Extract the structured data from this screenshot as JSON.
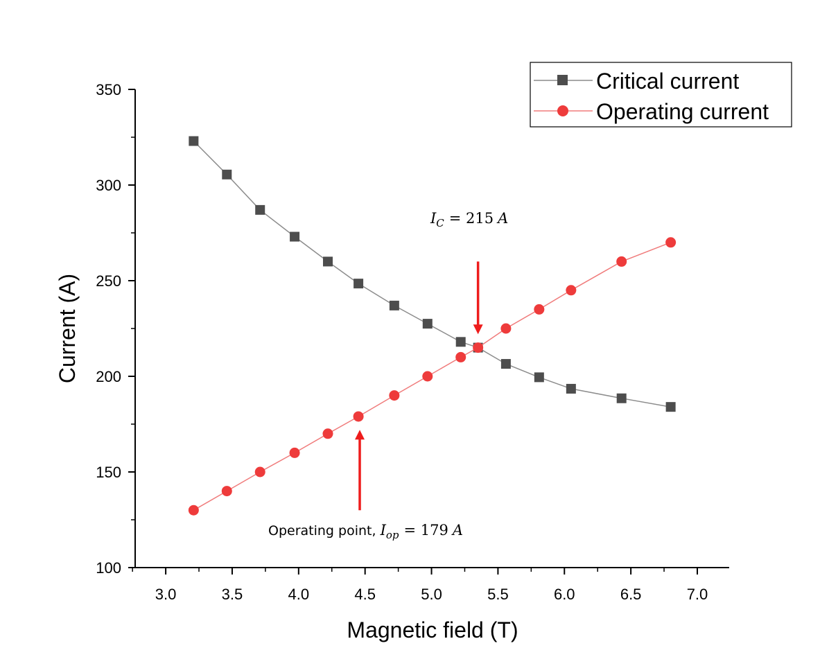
{
  "chart_data": {
    "type": "line",
    "xlabel": "Magnetic field (T)",
    "ylabel": "Current (A)",
    "xlim": [
      2.77,
      7.24
    ],
    "ylim": [
      100,
      350
    ],
    "xticks": [
      "3.0",
      "3.5",
      "4.0",
      "4.5",
      "5.0",
      "5.5",
      "6.0",
      "6.5",
      "7.0"
    ],
    "yticks": [
      "100",
      "150",
      "200",
      "250",
      "300",
      "350"
    ],
    "legend_position": "top-right",
    "series": [
      {
        "name": "Critical current",
        "color": "#4d4d4d",
        "line_color": "#8c8c8c",
        "marker": "square",
        "x": [
          3.21,
          3.46,
          3.71,
          3.97,
          4.22,
          4.45,
          4.72,
          4.97,
          5.22,
          5.35,
          5.56,
          5.81,
          6.05,
          6.43,
          6.8
        ],
        "values": [
          323,
          305.5,
          287,
          273,
          260,
          248.5,
          237,
          227.5,
          218,
          215,
          206.5,
          199.5,
          193.5,
          188.5,
          184
        ]
      },
      {
        "name": "Operating current",
        "color": "#ee3b3b",
        "line_color": "#f07b7b",
        "marker": "circle",
        "x": [
          3.21,
          3.46,
          3.71,
          3.97,
          4.22,
          4.45,
          4.72,
          4.97,
          5.22,
          5.35,
          5.56,
          5.81,
          6.05,
          6.43,
          6.8
        ],
        "values": [
          130,
          140,
          150,
          160,
          170,
          179,
          190,
          200,
          210,
          215,
          225,
          235,
          245,
          260,
          270
        ]
      }
    ],
    "annotations": [
      {
        "id": "ic",
        "symbol": "I",
        "subscript": "C",
        "equation": "= 215",
        "unit": "A",
        "arrow_x": 5.35,
        "arrow_from": 260,
        "arrow_to": 222
      },
      {
        "id": "op",
        "prefix": "Operating point, ",
        "symbol": "I",
        "subscript": "op",
        "equation": "= 179",
        "unit": "A",
        "arrow_x": 4.46,
        "arrow_from": 130,
        "arrow_to": 172
      }
    ],
    "arrow_color": "#ee1c1c"
  }
}
